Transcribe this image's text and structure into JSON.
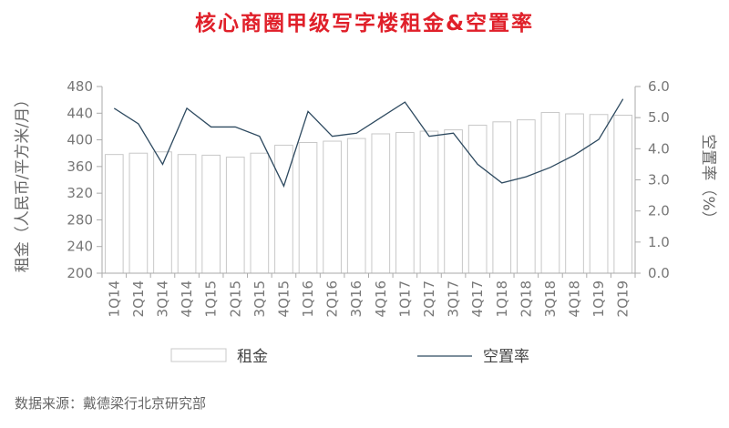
{
  "chart_data": {
    "type": "bar+line",
    "title": "核心商圈甲级写字楼租金&空置率",
    "categories": [
      "1Q14",
      "2Q14",
      "3Q14",
      "4Q14",
      "1Q15",
      "2Q15",
      "3Q15",
      "4Q15",
      "1Q16",
      "2Q16",
      "3Q16",
      "4Q16",
      "1Q17",
      "2Q17",
      "3Q17",
      "4Q17",
      "1Q18",
      "2Q18",
      "3Q18",
      "4Q18",
      "1Q19",
      "2Q19"
    ],
    "series": [
      {
        "name": "租金",
        "kind": "bar",
        "axis": "left",
        "values": [
          378,
          380,
          382,
          378,
          377,
          374,
          380,
          392,
          396,
          398,
          402,
          409,
          411,
          413,
          415,
          422,
          427,
          430,
          441,
          439,
          438,
          437
        ]
      },
      {
        "name": "空置率",
        "kind": "line",
        "axis": "right",
        "values": [
          5.3,
          4.8,
          3.5,
          5.3,
          4.7,
          4.7,
          4.4,
          2.8,
          5.2,
          4.4,
          4.5,
          5.0,
          5.5,
          4.4,
          4.5,
          3.5,
          2.9,
          3.1,
          3.4,
          3.8,
          4.3,
          5.6
        ]
      }
    ],
    "ylabel_left": "租金（人民币/平方米/月）",
    "ylabel_right": "空置率（%）",
    "ylim_left": [
      200,
      480
    ],
    "yticks_left": [
      "480",
      "440",
      "400",
      "360",
      "320",
      "280",
      "240",
      "200"
    ],
    "ylim_right": [
      0,
      6
    ],
    "yticks_right": [
      "6.0",
      "5.0",
      "4.0",
      "3.0",
      "2.0",
      "1.0",
      "0.0"
    ],
    "legend_position": "bottom",
    "grid": false,
    "colors": {
      "bar_fill": "#ffffff",
      "bar_stroke": "#c8c8c8",
      "line": "#2e4a60",
      "axis": "#aaaaaa",
      "title": "#e0202a"
    }
  },
  "source_text": "数据来源：戴德梁行北京研究部"
}
